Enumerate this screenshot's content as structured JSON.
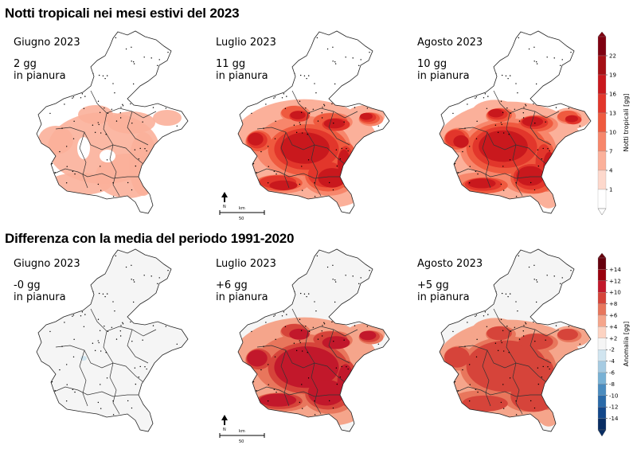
{
  "sections": [
    {
      "title": "Notti tropicali nei mesi estivi del 2023",
      "colorbar": {
        "label": "Notti tropicali [gg]",
        "ticks": [
          "22",
          "19",
          "16",
          "13",
          "10",
          "7",
          "4",
          "1"
        ],
        "colors": [
          "#7f0010",
          "#a50f15",
          "#c9181d",
          "#e2362b",
          "#ef5a3f",
          "#f7866b",
          "#fbb09a",
          "#fdd8cc",
          "#ffffff"
        ]
      },
      "panels": [
        {
          "month": "Giugno 2023",
          "value": "2 gg",
          "area": "in pianura",
          "level": 0.05
        },
        {
          "month": "Luglio 2023",
          "value": "11 gg",
          "area": "in pianura",
          "level": 0.55
        },
        {
          "month": "Agosto 2023",
          "value": "10 gg",
          "area": "in pianura",
          "level": 0.55
        }
      ]
    },
    {
      "title": "Differenza con la media del periodo 1991-2020",
      "colorbar": {
        "label": "Anomalia [gg]",
        "ticks": [
          "+14",
          "+12",
          "+10",
          "+8",
          "+6",
          "+4",
          "+2",
          "-2",
          "-4",
          "-6",
          "-8",
          "-10",
          "-12",
          "-14"
        ],
        "colors": [
          "#67000d",
          "#99000d",
          "#c2182b",
          "#d6443a",
          "#e8765c",
          "#f5a58b",
          "#fcd3c2",
          "#f5f5f5",
          "#d1e5f0",
          "#a6cbe2",
          "#78b1d5",
          "#4b8cbf",
          "#2a6aa8",
          "#12478a",
          "#082d63"
        ]
      },
      "panels": [
        {
          "month": "Giugno 2023",
          "value": "-0 gg",
          "area": "in pianura",
          "level": 0.0
        },
        {
          "month": "Luglio 2023",
          "value": "+6 gg",
          "area": "in pianura",
          "level": 0.4
        },
        {
          "month": "Agosto 2023",
          "value": "+5 gg",
          "area": "in pianura",
          "level": 0.35
        }
      ]
    }
  ],
  "scalebar": {
    "north": "N",
    "unit": "km",
    "distance": "50"
  }
}
